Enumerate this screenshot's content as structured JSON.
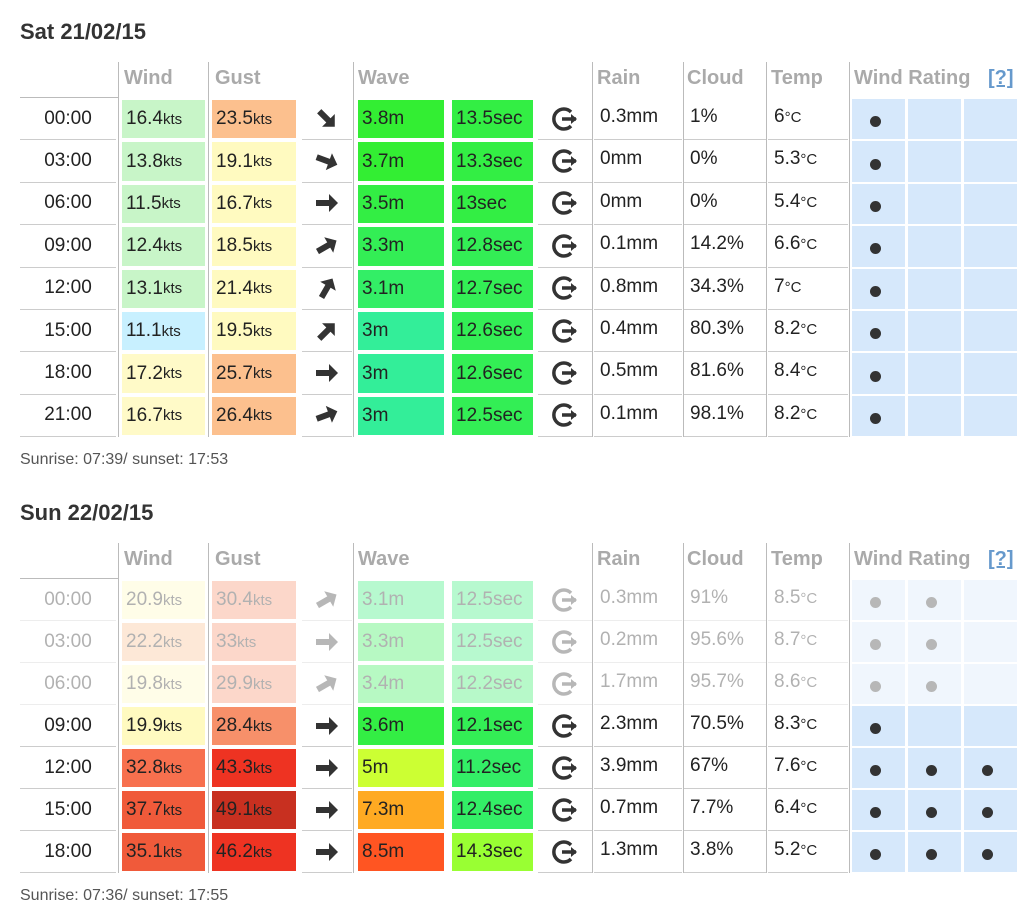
{
  "headers": {
    "wind": "Wind",
    "gust": "Gust",
    "wave": "Wave",
    "rain": "Rain",
    "cloud": "Cloud",
    "temp": "Temp",
    "rating": "Wind Rating",
    "help": "[?]"
  },
  "units": {
    "speed": "kts",
    "temp": "°C"
  },
  "days": [
    {
      "title": "Sat 21/02/15",
      "sun": "Sunrise: 07:39/ sunset: 17:53",
      "rows": [
        {
          "time": "00:00",
          "wind": "16.4",
          "gust": "23.5",
          "dir": 45,
          "wave": "3.8m",
          "period": "13.5sec",
          "rain": "0.3mm",
          "cloud": "1%",
          "temp": "6",
          "rating": 1,
          "colors": [
            "#c8f5c8",
            "#fcc08e",
            "#33ee33",
            "#33ee44"
          ]
        },
        {
          "time": "03:00",
          "wind": "13.8",
          "gust": "19.1",
          "dir": 20,
          "wave": "3.7m",
          "period": "13.3sec",
          "rain": "0mm",
          "cloud": "0%",
          "temp": "5.3",
          "rating": 1,
          "colors": [
            "#c8f5c8",
            "#fffac0",
            "#33ee33",
            "#33ee44"
          ]
        },
        {
          "time": "06:00",
          "wind": "11.5",
          "gust": "16.7",
          "dir": 0,
          "wave": "3.5m",
          "period": "13sec",
          "rain": "0mm",
          "cloud": "0%",
          "temp": "5.4",
          "rating": 1,
          "colors": [
            "#c8f5c8",
            "#fffac0",
            "#33ee44",
            "#33ee44"
          ]
        },
        {
          "time": "09:00",
          "wind": "12.4",
          "gust": "18.5",
          "dir": -30,
          "wave": "3.3m",
          "period": "12.8sec",
          "rain": "0.1mm",
          "cloud": "14.2%",
          "temp": "6.6",
          "rating": 1,
          "colors": [
            "#c8f5c8",
            "#fffac0",
            "#33ee55",
            "#33ee55"
          ]
        },
        {
          "time": "12:00",
          "wind": "13.1",
          "gust": "21.4",
          "dir": -60,
          "wave": "3.1m",
          "period": "12.7sec",
          "rain": "0.8mm",
          "cloud": "34.3%",
          "temp": "7",
          "rating": 1,
          "colors": [
            "#c8f5c8",
            "#fffac0",
            "#33ee66",
            "#33ee55"
          ]
        },
        {
          "time": "15:00",
          "wind": "11.1",
          "gust": "19.5",
          "dir": -45,
          "wave": "3m",
          "period": "12.6sec",
          "rain": "0.4mm",
          "cloud": "80.3%",
          "temp": "8.2",
          "rating": 1,
          "colors": [
            "#c8f0ff",
            "#fffac0",
            "#33ee99",
            "#33ee55"
          ]
        },
        {
          "time": "18:00",
          "wind": "17.2",
          "gust": "25.7",
          "dir": 0,
          "wave": "3m",
          "period": "12.6sec",
          "rain": "0.5mm",
          "cloud": "81.6%",
          "temp": "8.4",
          "rating": 1,
          "colors": [
            "#fffac8",
            "#fcc08e",
            "#33ee99",
            "#33ee55"
          ]
        },
        {
          "time": "21:00",
          "wind": "16.7",
          "gust": "26.4",
          "dir": -20,
          "wave": "3m",
          "period": "12.5sec",
          "rain": "0.1mm",
          "cloud": "98.1%",
          "temp": "8.2",
          "rating": 1,
          "colors": [
            "#fffac8",
            "#fcc08e",
            "#33ee99",
            "#33ee55"
          ]
        }
      ]
    },
    {
      "title": "Sun 22/02/15",
      "sun": "Sunrise: 07:36/ sunset: 17:55",
      "rows": [
        {
          "time": "00:00",
          "wind": "20.9",
          "gust": "30.4",
          "dir": -30,
          "wave": "3.1m",
          "period": "12.5sec",
          "rain": "0.3mm",
          "cloud": "91%",
          "temp": "8.5",
          "rating": 2,
          "faded": true,
          "colors": [
            "#fffac0",
            "#f7906a",
            "#33ee77",
            "#33ee77"
          ]
        },
        {
          "time": "03:00",
          "wind": "22.2",
          "gust": "33",
          "dir": 0,
          "wave": "3.3m",
          "period": "12.5sec",
          "rain": "0.2mm",
          "cloud": "95.6%",
          "temp": "8.7",
          "rating": 2,
          "faded": true,
          "colors": [
            "#fcc08e",
            "#f7906a",
            "#33ee55",
            "#33ee77"
          ]
        },
        {
          "time": "06:00",
          "wind": "19.8",
          "gust": "29.9",
          "dir": -30,
          "wave": "3.4m",
          "period": "12.2sec",
          "rain": "1.7mm",
          "cloud": "95.7%",
          "temp": "8.6",
          "rating": 2,
          "faded": true,
          "colors": [
            "#fffac0",
            "#f7906a",
            "#33ee55",
            "#33ee66"
          ]
        },
        {
          "time": "09:00",
          "wind": "19.9",
          "gust": "28.4",
          "dir": 0,
          "wave": "3.6m",
          "period": "12.1sec",
          "rain": "2.3mm",
          "cloud": "70.5%",
          "temp": "8.3",
          "rating": 1,
          "colors": [
            "#fffac0",
            "#f7906a",
            "#33ee44",
            "#33ee55"
          ]
        },
        {
          "time": "12:00",
          "wind": "32.8",
          "gust": "43.3",
          "dir": 0,
          "wave": "5m",
          "period": "11.2sec",
          "rain": "3.9mm",
          "cloud": "67%",
          "temp": "7.6",
          "rating": 3,
          "colors": [
            "#f7704e",
            "#ee3322",
            "#ccff33",
            "#33ee66"
          ]
        },
        {
          "time": "15:00",
          "wind": "37.7",
          "gust": "49.1",
          "dir": 0,
          "wave": "7.3m",
          "period": "12.4sec",
          "rain": "0.7mm",
          "cloud": "7.7%",
          "temp": "6.4",
          "rating": 3,
          "colors": [
            "#f05a3a",
            "#c83020",
            "#ffaa22",
            "#33ee66"
          ]
        },
        {
          "time": "18:00",
          "wind": "35.1",
          "gust": "46.2",
          "dir": 0,
          "wave": "8.5m",
          "period": "14.3sec",
          "rain": "1.3mm",
          "cloud": "3.8%",
          "temp": "5.2",
          "rating": 3,
          "colors": [
            "#f05a3a",
            "#ee3322",
            "#ff5522",
            "#99ff33"
          ]
        }
      ]
    }
  ]
}
